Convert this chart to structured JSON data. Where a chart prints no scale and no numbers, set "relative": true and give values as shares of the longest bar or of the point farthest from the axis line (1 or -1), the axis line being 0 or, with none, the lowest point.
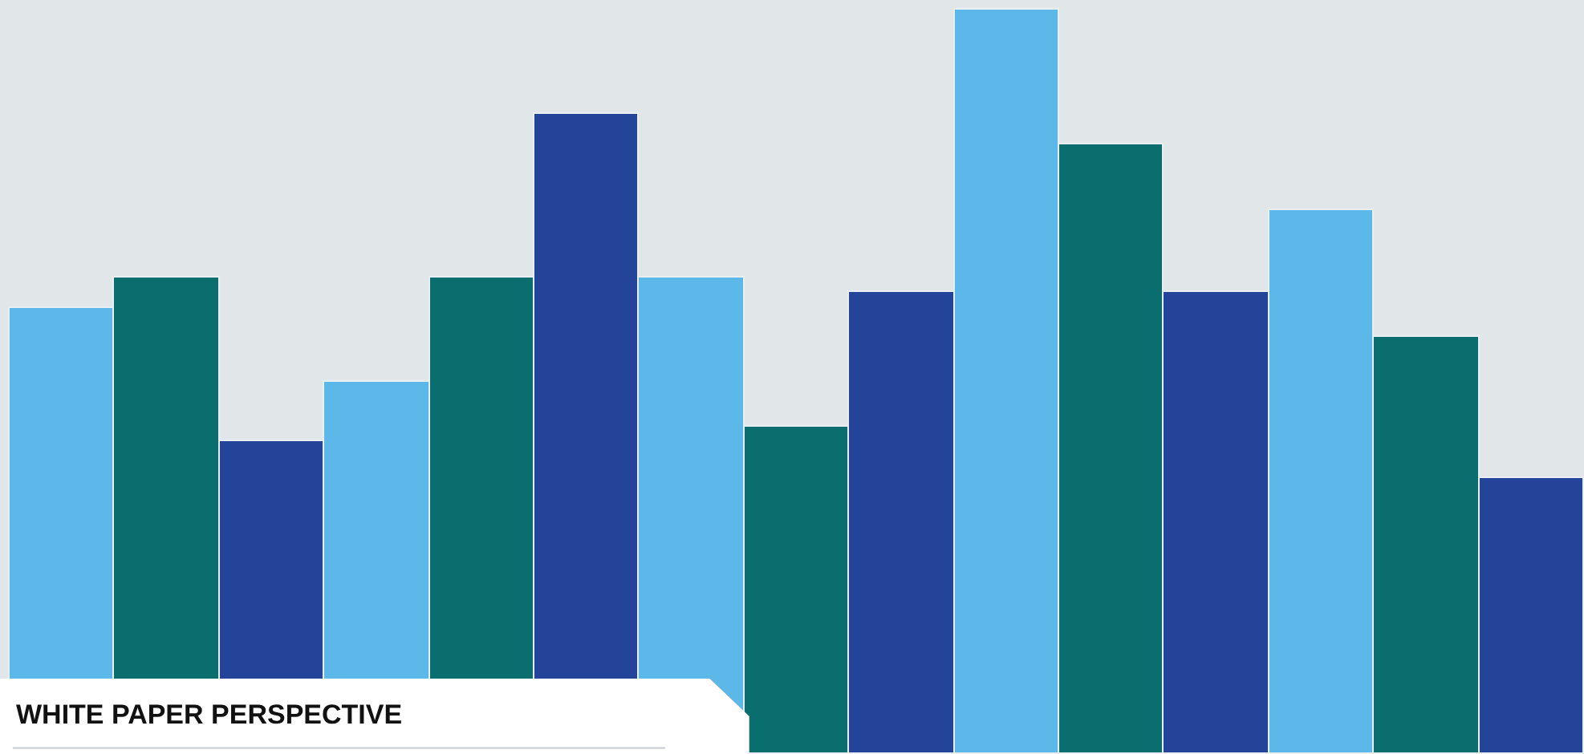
{
  "chart_data": {
    "type": "bar",
    "relative": true,
    "title": "WHITE PAPER PERSPECTIVE",
    "categories": [
      null,
      null,
      null,
      null,
      null,
      null,
      null,
      null,
      null,
      null,
      null,
      null,
      null,
      null,
      null
    ],
    "values": [
      0.6,
      0.64,
      0.42,
      0.5,
      0.64,
      0.86,
      0.64,
      0.44,
      0.62,
      1,
      0.82,
      0.62,
      0.73,
      0.56,
      0.37
    ],
    "colors": [
      "#5bb8e8",
      "#0b6e6e",
      "#24449a",
      "#5bb8e8",
      "#0b6e6e",
      "#24449a",
      "#5bb8e8",
      "#0b6e6e",
      "#24449a",
      "#5bb8e8",
      "#0b6e6e",
      "#24449a",
      "#5bb8e8",
      "#0b6e6e",
      "#24449a"
    ]
  }
}
